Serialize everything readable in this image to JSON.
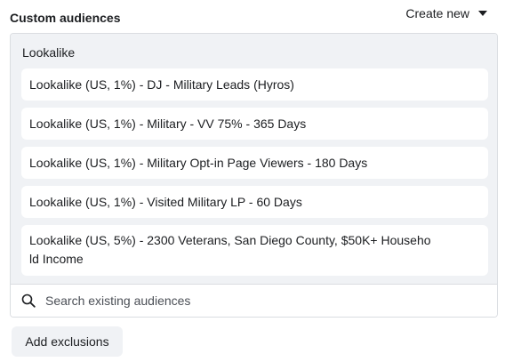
{
  "section": {
    "title": "Custom audiences",
    "create_new_label": "Create new"
  },
  "panel": {
    "group_label": "Lookalike",
    "items": [
      {
        "label": "Lookalike (US, 1%) - DJ - Military Leads (Hyros)"
      },
      {
        "label": "Lookalike (US, 1%) - Military - VV 75% - 365 Days"
      },
      {
        "label": "Lookalike (US, 1%) - Military Opt-in Page Viewers - 180 Days"
      },
      {
        "label": "Lookalike (US, 1%) - Visited Military LP - 60 Days"
      },
      {
        "label": "Lookalike (US, 5%) - 2300 Veterans, San Diego County, $50K+ Household Income"
      }
    ],
    "search": {
      "placeholder": "Search existing audiences",
      "value": "",
      "icon": "search-icon"
    }
  },
  "actions": {
    "add_exclusions_label": "Add exclusions"
  },
  "icons": {
    "create_new": "caret-down-icon"
  }
}
